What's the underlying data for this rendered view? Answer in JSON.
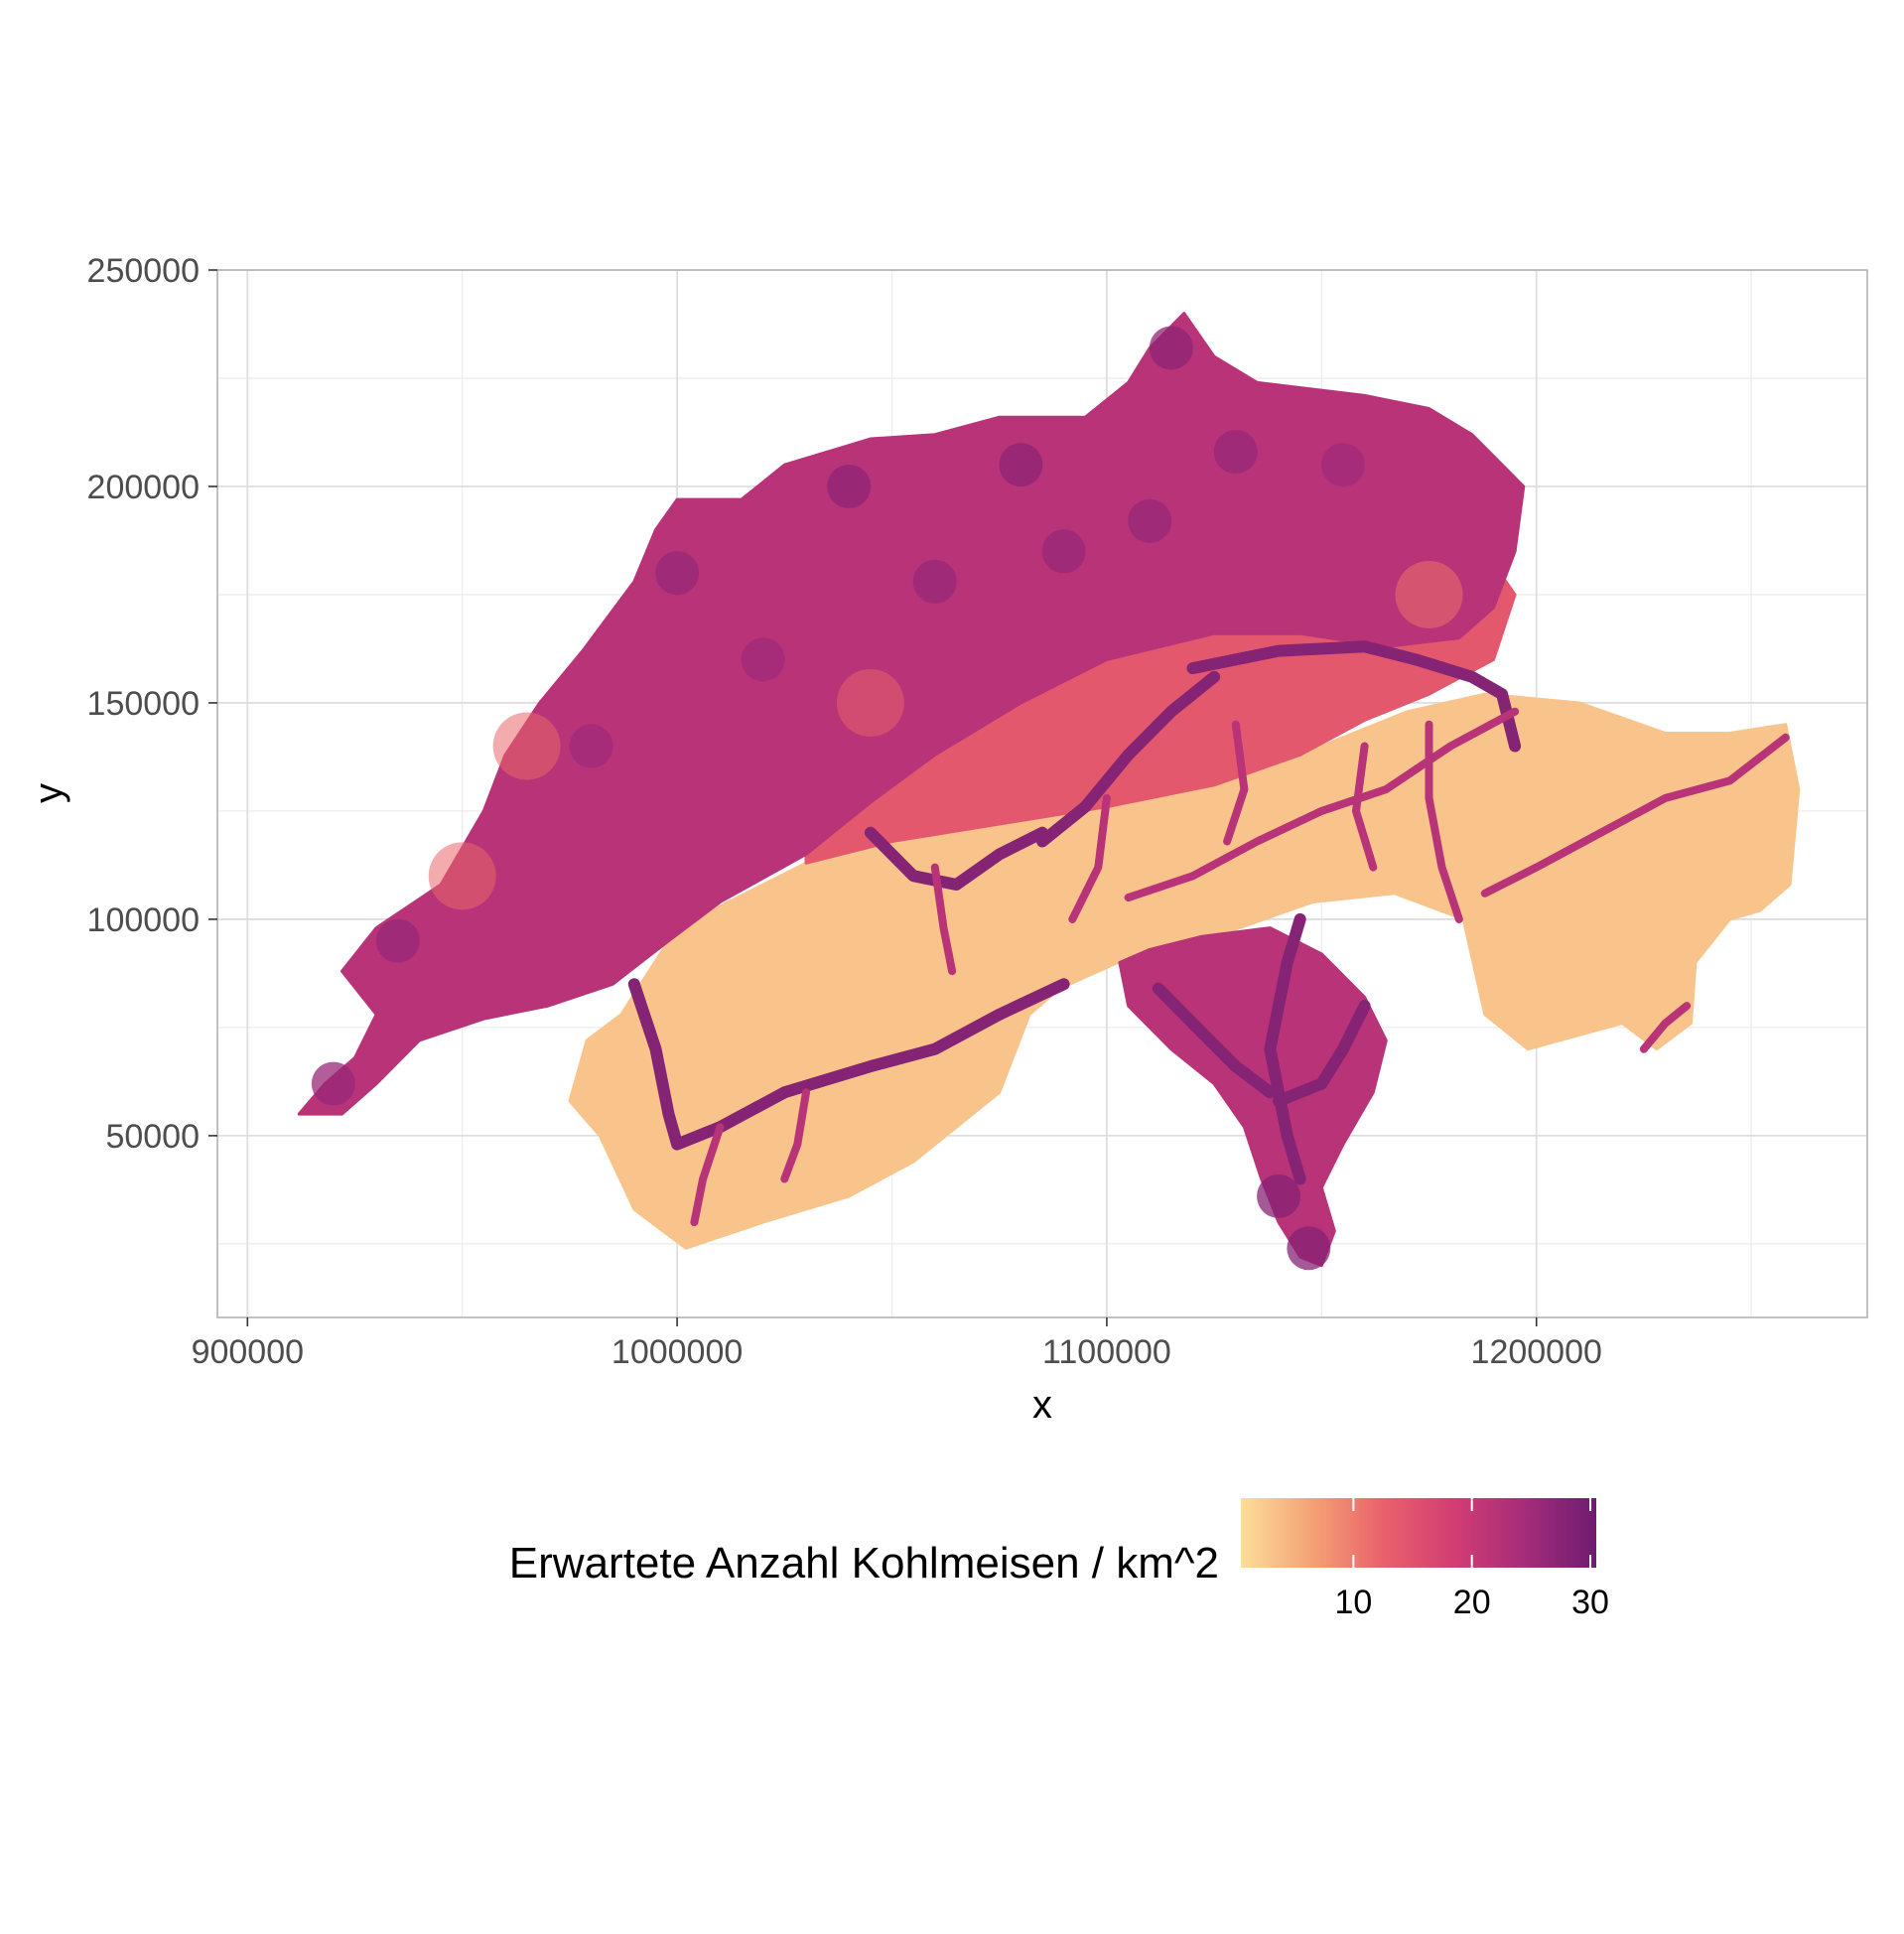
{
  "chart_data": {
    "type": "heatmap",
    "title": "",
    "xlabel": "x",
    "ylabel": "y",
    "xlim": [
      893000,
      1277000
    ],
    "ylim": [
      8000,
      250000
    ],
    "x_ticks": [
      {
        "value": 900000,
        "label": "900000"
      },
      {
        "value": 1000000,
        "label": "1000000"
      },
      {
        "value": 1100000,
        "label": "1100000"
      },
      {
        "value": 1200000,
        "label": "1200000"
      }
    ],
    "y_ticks": [
      {
        "value": 50000,
        "label": "50000"
      },
      {
        "value": 100000,
        "label": "100000"
      },
      {
        "value": 150000,
        "label": "150000"
      },
      {
        "value": 200000,
        "label": "200000"
      },
      {
        "value": 250000,
        "label": "250000"
      }
    ],
    "x_minor_gridlines": [
      950000,
      1050000,
      1150000,
      1250000
    ],
    "y_minor_gridlines": [
      25000,
      75000,
      125000,
      175000,
      225000
    ],
    "grid": true,
    "colorbar": {
      "title": "Erwartete Anzahl Kohlmeisen / km^2",
      "min": 0.5,
      "max": 30.5,
      "colors": [
        "#fcdd9a",
        "#f4a275",
        "#e9616b",
        "#d23d73",
        "#a52c7a",
        "#6e1c70"
      ],
      "ticks": [
        {
          "value": 10,
          "label": "10"
        },
        {
          "value": 20,
          "label": "20"
        },
        {
          "value": 30,
          "label": "30"
        }
      ],
      "position": "bottom"
    },
    "regions": [
      {
        "level": "low",
        "value": 3,
        "polygon": [
          [
            1002000,
            24000
          ],
          [
            990000,
            33000
          ],
          [
            982000,
            50000
          ],
          [
            975000,
            58000
          ],
          [
            979000,
            72000
          ],
          [
            987000,
            78000
          ],
          [
            998000,
            95000
          ],
          [
            1010000,
            103000
          ],
          [
            1030000,
            113000
          ],
          [
            1055000,
            123000
          ],
          [
            1075000,
            122000
          ],
          [
            1100000,
            126000
          ],
          [
            1125000,
            131000
          ],
          [
            1150000,
            140000
          ],
          [
            1170000,
            148000
          ],
          [
            1188000,
            152000
          ],
          [
            1210000,
            150000
          ],
          [
            1230000,
            143000
          ],
          [
            1245000,
            143000
          ],
          [
            1258000,
            145000
          ],
          [
            1261000,
            130000
          ],
          [
            1259000,
            108000
          ],
          [
            1252000,
            102000
          ],
          [
            1245000,
            100000
          ],
          [
            1237000,
            90000
          ],
          [
            1236000,
            76000
          ],
          [
            1228000,
            70000
          ],
          [
            1220000,
            76000
          ],
          [
            1198000,
            70000
          ],
          [
            1188000,
            78000
          ],
          [
            1183000,
            100000
          ],
          [
            1167000,
            106000
          ],
          [
            1148000,
            104000
          ],
          [
            1125000,
            96000
          ],
          [
            1107000,
            92000
          ],
          [
            1089000,
            84000
          ],
          [
            1082000,
            78000
          ],
          [
            1075000,
            60000
          ],
          [
            1055000,
            44000
          ],
          [
            1040000,
            36000
          ],
          [
            1020000,
            30000
          ]
        ]
      },
      {
        "level": "mid",
        "value": 14,
        "polygon": [
          [
            1030000,
            113000
          ],
          [
            1050000,
            118000
          ],
          [
            1075000,
            122000
          ],
          [
            1100000,
            126000
          ],
          [
            1125000,
            131000
          ],
          [
            1145000,
            138000
          ],
          [
            1160000,
            146000
          ],
          [
            1175000,
            152000
          ],
          [
            1190000,
            160000
          ],
          [
            1195000,
            175000
          ],
          [
            1188000,
            185000
          ],
          [
            1170000,
            190000
          ],
          [
            1150000,
            183000
          ],
          [
            1130000,
            172000
          ],
          [
            1110000,
            165000
          ],
          [
            1090000,
            158000
          ],
          [
            1070000,
            152000
          ],
          [
            1050000,
            142000
          ],
          [
            1030000,
            128000
          ]
        ]
      },
      {
        "level": "high",
        "value": 22,
        "polygon": [
          [
            912000,
            55000
          ],
          [
            918000,
            62000
          ],
          [
            925000,
            68000
          ],
          [
            930000,
            78000
          ],
          [
            922000,
            88000
          ],
          [
            930000,
            98000
          ],
          [
            945000,
            108000
          ],
          [
            955000,
            125000
          ],
          [
            960000,
            138000
          ],
          [
            968000,
            150000
          ],
          [
            978000,
            162000
          ],
          [
            990000,
            178000
          ],
          [
            995000,
            190000
          ],
          [
            1000000,
            197000
          ],
          [
            1015000,
            197000
          ],
          [
            1025000,
            205000
          ],
          [
            1045000,
            211000
          ],
          [
            1060000,
            212000
          ],
          [
            1075000,
            216000
          ],
          [
            1095000,
            216000
          ],
          [
            1105000,
            224000
          ],
          [
            1110000,
            232000
          ],
          [
            1118000,
            240000
          ],
          [
            1125000,
            230000
          ],
          [
            1135000,
            224000
          ],
          [
            1160000,
            221000
          ],
          [
            1175000,
            218000
          ],
          [
            1185000,
            212000
          ],
          [
            1192000,
            205000
          ],
          [
            1197000,
            200000
          ],
          [
            1195000,
            185000
          ],
          [
            1190000,
            172000
          ],
          [
            1182000,
            165000
          ],
          [
            1165000,
            163000
          ],
          [
            1145000,
            166000
          ],
          [
            1125000,
            166000
          ],
          [
            1100000,
            160000
          ],
          [
            1080000,
            150000
          ],
          [
            1060000,
            138000
          ],
          [
            1045000,
            127000
          ],
          [
            1030000,
            115000
          ],
          [
            1010000,
            104000
          ],
          [
            998000,
            95000
          ],
          [
            985000,
            85000
          ],
          [
            970000,
            80000
          ],
          [
            955000,
            77000
          ],
          [
            940000,
            72000
          ],
          [
            930000,
            62000
          ],
          [
            922000,
            55000
          ]
        ]
      },
      {
        "level": "high",
        "value": 22,
        "polygon": [
          [
            1103000,
            90000
          ],
          [
            1105000,
            80000
          ],
          [
            1115000,
            70000
          ],
          [
            1125000,
            62000
          ],
          [
            1132000,
            52000
          ],
          [
            1136000,
            40000
          ],
          [
            1140000,
            30000
          ],
          [
            1145000,
            22000
          ],
          [
            1150000,
            20000
          ],
          [
            1153000,
            28000
          ],
          [
            1150000,
            38000
          ],
          [
            1155000,
            48000
          ],
          [
            1162000,
            60000
          ],
          [
            1165000,
            72000
          ],
          [
            1160000,
            82000
          ],
          [
            1150000,
            92000
          ],
          [
            1138000,
            98000
          ],
          [
            1122000,
            96000
          ],
          [
            1110000,
            93000
          ]
        ]
      }
    ],
    "valleys": [
      {
        "level": "very_high",
        "value": 28,
        "points": [
          [
            990000,
            85000
          ],
          [
            995000,
            70000
          ],
          [
            998000,
            55000
          ],
          [
            1000000,
            48000
          ],
          [
            1010000,
            52000
          ],
          [
            1025000,
            60000
          ],
          [
            1045000,
            66000
          ],
          [
            1060000,
            70000
          ],
          [
            1075000,
            78000
          ],
          [
            1090000,
            85000
          ]
        ]
      },
      {
        "level": "very_high",
        "value": 28,
        "points": [
          [
            1045000,
            120000
          ],
          [
            1055000,
            110000
          ],
          [
            1065000,
            108000
          ],
          [
            1075000,
            115000
          ],
          [
            1085000,
            120000
          ]
        ]
      },
      {
        "level": "very_high",
        "value": 28,
        "points": [
          [
            1085000,
            118000
          ],
          [
            1095000,
            126000
          ],
          [
            1105000,
            138000
          ],
          [
            1115000,
            148000
          ],
          [
            1125000,
            156000
          ]
        ]
      },
      {
        "level": "very_high",
        "value": 28,
        "points": [
          [
            1120000,
            158000
          ],
          [
            1140000,
            162000
          ],
          [
            1160000,
            163000
          ],
          [
            1172000,
            160000
          ],
          [
            1185000,
            156000
          ],
          [
            1192000,
            152000
          ],
          [
            1195000,
            140000
          ]
        ]
      },
      {
        "level": "very_high",
        "value": 28,
        "points": [
          [
            1145000,
            100000
          ],
          [
            1142000,
            90000
          ],
          [
            1140000,
            80000
          ],
          [
            1138000,
            70000
          ],
          [
            1140000,
            60000
          ],
          [
            1142000,
            50000
          ],
          [
            1145000,
            40000
          ]
        ]
      },
      {
        "level": "very_high",
        "value": 28,
        "points": [
          [
            1112000,
            84000
          ],
          [
            1120000,
            76000
          ],
          [
            1130000,
            66000
          ],
          [
            1138000,
            60000
          ]
        ]
      },
      {
        "level": "very_high",
        "value": 28,
        "points": [
          [
            1160000,
            80000
          ],
          [
            1155000,
            70000
          ],
          [
            1150000,
            62000
          ],
          [
            1140000,
            58000
          ]
        ]
      },
      {
        "level": "high",
        "value": 22,
        "points": [
          [
            1195000,
            148000
          ],
          [
            1180000,
            140000
          ],
          [
            1165000,
            130000
          ],
          [
            1150000,
            125000
          ],
          [
            1135000,
            118000
          ],
          [
            1120000,
            110000
          ],
          [
            1105000,
            105000
          ]
        ]
      },
      {
        "level": "high",
        "value": 22,
        "points": [
          [
            1258000,
            142000
          ],
          [
            1245000,
            132000
          ],
          [
            1230000,
            128000
          ],
          [
            1215000,
            120000
          ],
          [
            1200000,
            112000
          ],
          [
            1188000,
            106000
          ]
        ]
      },
      {
        "level": "high",
        "value": 22,
        "points": [
          [
            1060000,
            112000
          ],
          [
            1062000,
            98000
          ],
          [
            1064000,
            88000
          ]
        ]
      },
      {
        "level": "high",
        "value": 22,
        "points": [
          [
            1100000,
            128000
          ],
          [
            1098000,
            112000
          ],
          [
            1092000,
            100000
          ]
        ]
      },
      {
        "level": "high",
        "value": 22,
        "points": [
          [
            1130000,
            145000
          ],
          [
            1132000,
            130000
          ],
          [
            1128000,
            118000
          ]
        ]
      },
      {
        "level": "high",
        "value": 22,
        "points": [
          [
            1030000,
            60000
          ],
          [
            1028000,
            48000
          ],
          [
            1025000,
            40000
          ]
        ]
      },
      {
        "level": "high",
        "value": 22,
        "points": [
          [
            1010000,
            52000
          ],
          [
            1006000,
            40000
          ],
          [
            1004000,
            30000
          ]
        ]
      },
      {
        "level": "high",
        "value": 22,
        "points": [
          [
            1160000,
            140000
          ],
          [
            1158000,
            125000
          ],
          [
            1162000,
            112000
          ]
        ]
      },
      {
        "level": "high",
        "value": 22,
        "points": [
          [
            1175000,
            145000
          ],
          [
            1175000,
            128000
          ],
          [
            1178000,
            112000
          ],
          [
            1182000,
            100000
          ]
        ]
      },
      {
        "level": "high",
        "value": 22,
        "points": [
          [
            1235000,
            80000
          ],
          [
            1230000,
            76000
          ],
          [
            1225000,
            70000
          ]
        ]
      }
    ],
    "hotspots": [
      {
        "x": 920000,
        "y": 62000,
        "value": 26
      },
      {
        "x": 935000,
        "y": 95000,
        "value": 26
      },
      {
        "x": 1000000,
        "y": 180000,
        "value": 26
      },
      {
        "x": 1040000,
        "y": 200000,
        "value": 27
      },
      {
        "x": 1080000,
        "y": 205000,
        "value": 27
      },
      {
        "x": 1115000,
        "y": 232000,
        "value": 27
      },
      {
        "x": 1130000,
        "y": 208000,
        "value": 26
      },
      {
        "x": 1060000,
        "y": 178000,
        "value": 26
      },
      {
        "x": 1090000,
        "y": 185000,
        "value": 26
      },
      {
        "x": 1110000,
        "y": 192000,
        "value": 26
      },
      {
        "x": 1147000,
        "y": 24000,
        "value": 28
      },
      {
        "x": 1140000,
        "y": 36000,
        "value": 28
      },
      {
        "x": 980000,
        "y": 140000,
        "value": 25
      },
      {
        "x": 1020000,
        "y": 160000,
        "value": 25
      },
      {
        "x": 1155000,
        "y": 205000,
        "value": 25
      }
    ],
    "pale_spots": [
      {
        "x": 950000,
        "y": 110000,
        "value": 12
      },
      {
        "x": 965000,
        "y": 140000,
        "value": 12
      },
      {
        "x": 1045000,
        "y": 150000,
        "value": 13
      },
      {
        "x": 1175000,
        "y": 175000,
        "value": 11
      }
    ]
  }
}
